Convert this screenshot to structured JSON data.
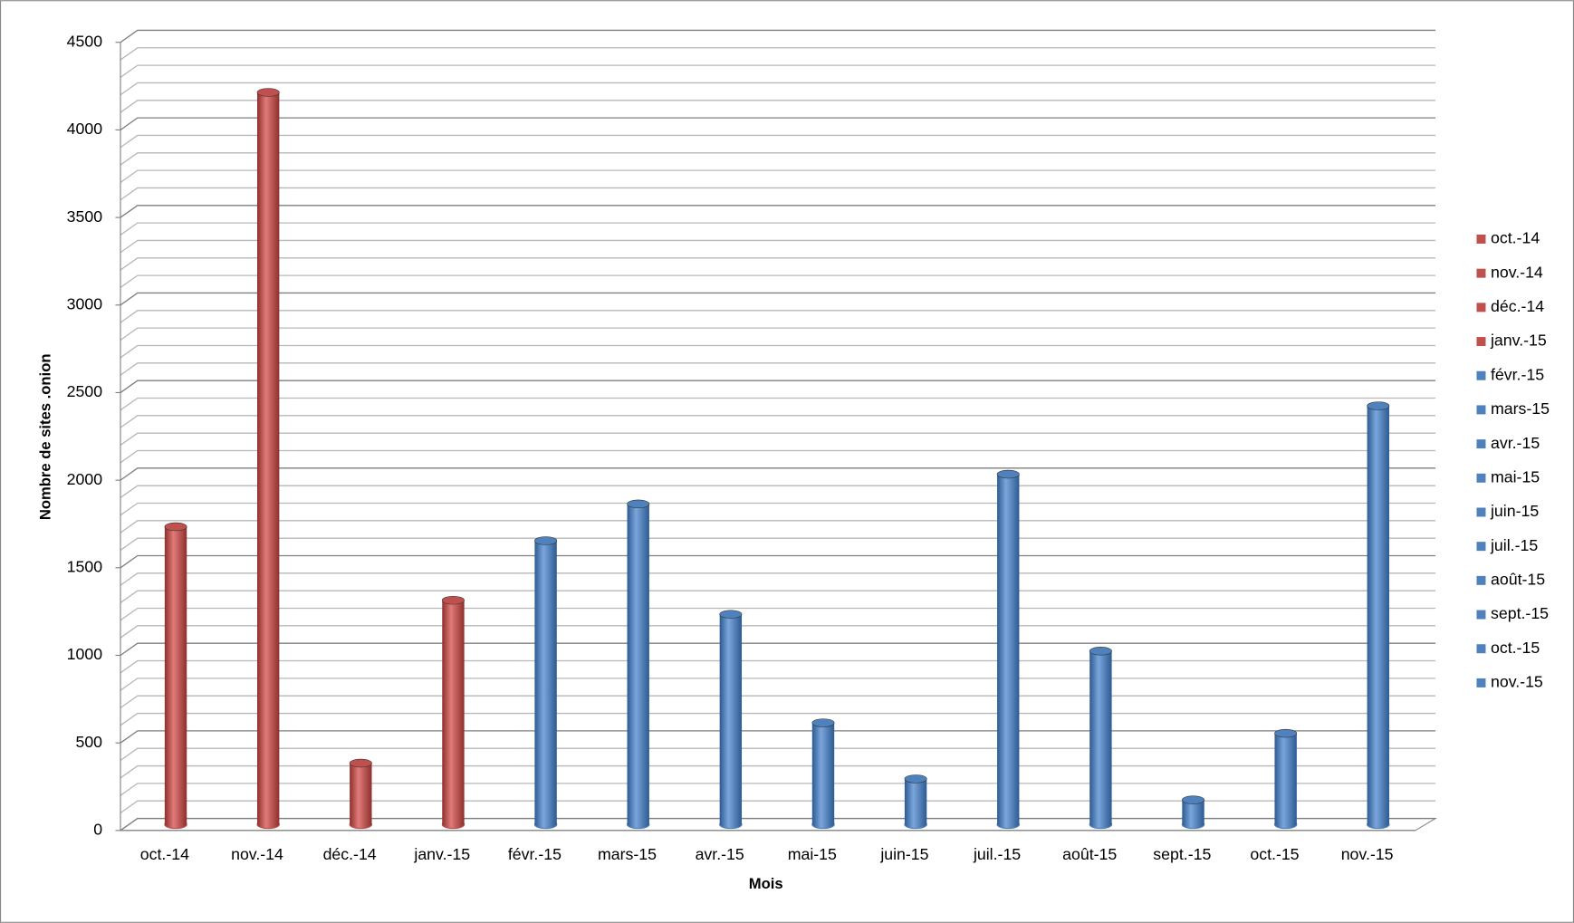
{
  "chart_data": {
    "type": "bar3d",
    "y_axis_label": "Nombre de sites .onion",
    "x_axis_label": "Mois",
    "categories": [
      "oct.-14",
      "nov.-14",
      "déc.-14",
      "janv.-15",
      "févr.-15",
      "mars-15",
      "avr.-15",
      "mai-15",
      "juin-15",
      "juil.-15",
      "août-15",
      "sept.-15",
      "oct.-15",
      "nov.-15"
    ],
    "values": [
      1700,
      4180,
      350,
      1280,
      1620,
      1830,
      1200,
      580,
      260,
      2000,
      990,
      140,
      520,
      2390
    ],
    "colors": [
      "#c0504d",
      "#c0504d",
      "#c0504d",
      "#c0504d",
      "#4f81bd",
      "#4f81bd",
      "#4f81bd",
      "#4f81bd",
      "#4f81bd",
      "#4f81bd",
      "#4f81bd",
      "#4f81bd",
      "#4f81bd",
      "#4f81bd"
    ],
    "ylim": [
      0,
      4500
    ],
    "yticks": [
      0,
      500,
      1000,
      1500,
      2000,
      2500,
      3000,
      3500,
      4000,
      4500
    ],
    "minor_yticks": [
      100,
      200,
      300,
      400,
      600,
      700,
      800,
      900,
      1100,
      1200,
      1300,
      1400,
      1600,
      1700,
      1800,
      1900,
      2100,
      2200,
      2300,
      2400,
      2600,
      2700,
      2800,
      2900,
      3100,
      3200,
      3300,
      3400,
      3600,
      3700,
      3800,
      3900,
      4100,
      4200,
      4300,
      4400
    ],
    "grid": true,
    "legend": "right"
  }
}
